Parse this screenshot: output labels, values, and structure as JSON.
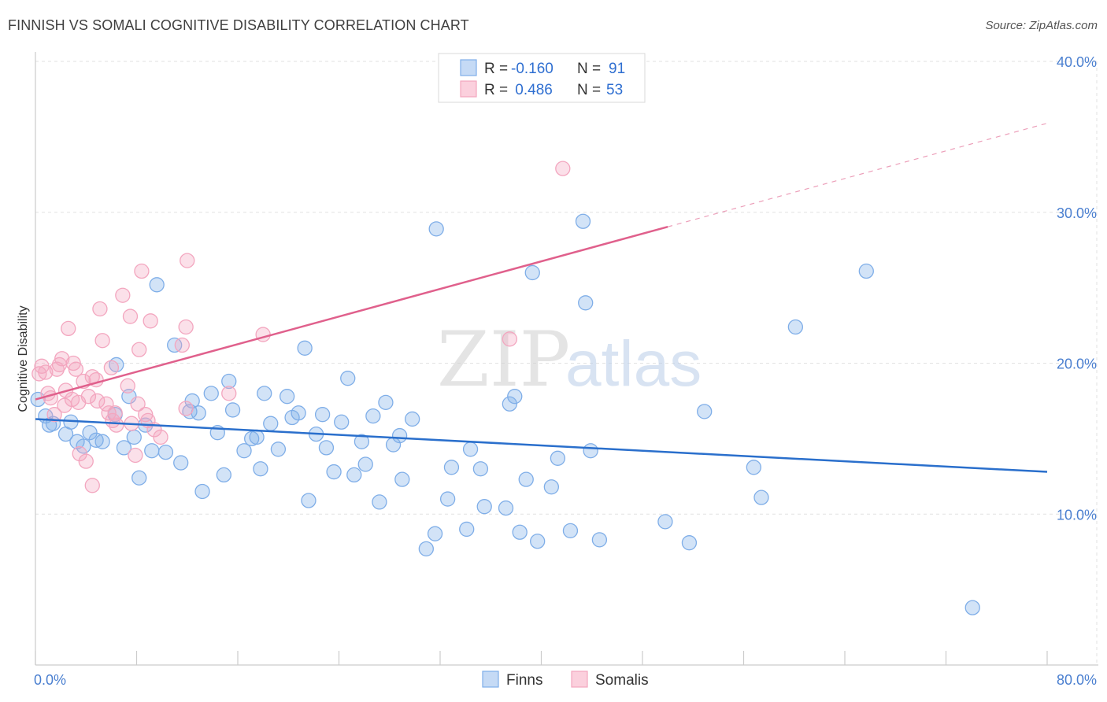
{
  "title": "FINNISH VS SOMALI COGNITIVE DISABILITY CORRELATION CHART",
  "source": "Source: ZipAtlas.com",
  "watermark": {
    "zip": "ZIP",
    "atlas": "atlas"
  },
  "chart_data": {
    "type": "scatter",
    "title": "FINNISH VS SOMALI COGNITIVE DISABILITY CORRELATION CHART",
    "ylabel": "Cognitive Disability",
    "xlabel": "",
    "xlim": [
      0,
      80
    ],
    "ylim": [
      0,
      40
    ],
    "x_tick_labels": [
      {
        "v": 0,
        "label": "0.0%"
      },
      {
        "v": 80,
        "label": "80.0%"
      }
    ],
    "y_ticks": [
      {
        "v": 10,
        "label": "10.0%"
      },
      {
        "v": 20,
        "label": "20.0%"
      },
      {
        "v": 30,
        "label": "30.0%"
      },
      {
        "v": 40,
        "label": "40.0%"
      }
    ],
    "grid": true,
    "legend_position": "top-center",
    "legend": [
      {
        "r_label": "R =",
        "r_value": "-0.160",
        "n_label": "N =",
        "n_value": "91"
      },
      {
        "r_label": "R =",
        "r_value": " 0.486",
        "n_label": "N =",
        "n_value": "53"
      }
    ],
    "series": [
      {
        "name": "Finns",
        "color": "#7faee8",
        "line_color": "#2a6fcc",
        "trend": {
          "x1": 0,
          "y1": 16.3,
          "x2": 80,
          "y2": 12.8,
          "dashed_from": null
        },
        "points": [
          [
            0.2,
            17.6
          ],
          [
            0.8,
            16.5
          ],
          [
            1.1,
            15.9
          ],
          [
            1.4,
            16.0
          ],
          [
            2.4,
            15.3
          ],
          [
            2.8,
            16.1
          ],
          [
            3.3,
            14.8
          ],
          [
            3.8,
            14.5
          ],
          [
            4.3,
            15.4
          ],
          [
            4.8,
            14.9
          ],
          [
            5.3,
            14.8
          ],
          [
            6.3,
            16.6
          ],
          [
            6.4,
            19.9
          ],
          [
            7.0,
            14.4
          ],
          [
            7.4,
            17.8
          ],
          [
            7.8,
            15.1
          ],
          [
            8.2,
            12.4
          ],
          [
            8.7,
            15.9
          ],
          [
            9.2,
            14.2
          ],
          [
            9.6,
            25.2
          ],
          [
            10.3,
            14.1
          ],
          [
            11.0,
            21.2
          ],
          [
            11.5,
            13.4
          ],
          [
            12.2,
            16.8
          ],
          [
            12.4,
            17.5
          ],
          [
            12.9,
            16.7
          ],
          [
            13.2,
            11.5
          ],
          [
            13.9,
            18.0
          ],
          [
            14.4,
            15.4
          ],
          [
            14.9,
            12.6
          ],
          [
            15.3,
            18.8
          ],
          [
            15.6,
            16.9
          ],
          [
            16.5,
            14.2
          ],
          [
            17.1,
            15.0
          ],
          [
            17.5,
            15.1
          ],
          [
            17.8,
            13.0
          ],
          [
            18.1,
            18.0
          ],
          [
            18.6,
            16.0
          ],
          [
            19.2,
            14.3
          ],
          [
            19.9,
            17.8
          ],
          [
            20.3,
            16.4
          ],
          [
            20.8,
            16.7
          ],
          [
            21.3,
            21.0
          ],
          [
            21.6,
            10.9
          ],
          [
            22.2,
            15.3
          ],
          [
            22.7,
            16.6
          ],
          [
            23.0,
            14.4
          ],
          [
            23.6,
            12.8
          ],
          [
            24.2,
            16.1
          ],
          [
            24.7,
            19.0
          ],
          [
            25.2,
            12.6
          ],
          [
            25.8,
            14.8
          ],
          [
            26.1,
            13.3
          ],
          [
            26.7,
            16.5
          ],
          [
            27.2,
            10.8
          ],
          [
            27.7,
            17.4
          ],
          [
            28.3,
            14.6
          ],
          [
            28.8,
            15.2
          ],
          [
            29.0,
            12.3
          ],
          [
            29.8,
            16.3
          ],
          [
            30.9,
            7.7
          ],
          [
            31.6,
            8.7
          ],
          [
            31.7,
            28.9
          ],
          [
            32.6,
            11.0
          ],
          [
            32.9,
            13.1
          ],
          [
            34.1,
            9.0
          ],
          [
            34.4,
            14.3
          ],
          [
            35.2,
            13.0
          ],
          [
            35.5,
            10.5
          ],
          [
            37.2,
            10.4
          ],
          [
            37.5,
            17.3
          ],
          [
            37.9,
            17.8
          ],
          [
            38.3,
            8.8
          ],
          [
            38.8,
            12.3
          ],
          [
            39.3,
            26.0
          ],
          [
            39.7,
            8.2
          ],
          [
            40.8,
            11.8
          ],
          [
            41.3,
            13.7
          ],
          [
            42.3,
            8.9
          ],
          [
            43.5,
            24.0
          ],
          [
            43.3,
            29.4
          ],
          [
            43.9,
            14.2
          ],
          [
            44.6,
            8.3
          ],
          [
            49.8,
            9.5
          ],
          [
            51.7,
            8.1
          ],
          [
            52.9,
            16.8
          ],
          [
            56.8,
            13.1
          ],
          [
            57.4,
            11.1
          ],
          [
            60.1,
            22.4
          ],
          [
            65.7,
            26.1
          ],
          [
            74.1,
            3.8
          ]
        ]
      },
      {
        "name": "Somalis",
        "color": "#f3a6bf",
        "line_color": "#e0608c",
        "trend": {
          "x1": 0,
          "y1": 17.6,
          "x2": 80,
          "y2": 35.9,
          "dashed_from": 50
        },
        "points": [
          [
            0.3,
            19.3
          ],
          [
            0.5,
            19.8
          ],
          [
            0.8,
            19.4
          ],
          [
            1.0,
            18.0
          ],
          [
            1.2,
            17.7
          ],
          [
            1.5,
            16.6
          ],
          [
            1.7,
            19.6
          ],
          [
            1.9,
            19.9
          ],
          [
            2.1,
            20.3
          ],
          [
            2.3,
            17.2
          ],
          [
            2.4,
            18.2
          ],
          [
            2.6,
            22.3
          ],
          [
            2.9,
            17.6
          ],
          [
            3.0,
            20.0
          ],
          [
            3.2,
            19.6
          ],
          [
            3.4,
            17.4
          ],
          [
            3.5,
            14.0
          ],
          [
            3.8,
            18.8
          ],
          [
            4.0,
            13.5
          ],
          [
            4.2,
            17.8
          ],
          [
            4.5,
            19.1
          ],
          [
            4.5,
            11.9
          ],
          [
            4.8,
            18.9
          ],
          [
            4.9,
            17.5
          ],
          [
            5.1,
            23.6
          ],
          [
            5.3,
            21.5
          ],
          [
            5.6,
            17.3
          ],
          [
            5.8,
            16.7
          ],
          [
            6.0,
            19.7
          ],
          [
            6.1,
            16.2
          ],
          [
            6.3,
            16.7
          ],
          [
            6.4,
            15.9
          ],
          [
            6.9,
            24.5
          ],
          [
            7.3,
            18.5
          ],
          [
            7.5,
            23.1
          ],
          [
            7.6,
            16.0
          ],
          [
            7.9,
            13.9
          ],
          [
            8.1,
            17.3
          ],
          [
            8.2,
            20.9
          ],
          [
            8.4,
            26.1
          ],
          [
            8.7,
            16.6
          ],
          [
            8.9,
            16.2
          ],
          [
            9.1,
            22.8
          ],
          [
            9.4,
            15.6
          ],
          [
            9.9,
            15.1
          ],
          [
            11.6,
            21.2
          ],
          [
            11.9,
            22.4
          ],
          [
            12.0,
            26.8
          ],
          [
            15.3,
            18.0
          ],
          [
            18.0,
            21.9
          ],
          [
            37.5,
            21.6
          ],
          [
            41.7,
            32.9
          ],
          [
            11.9,
            17.0
          ]
        ]
      }
    ]
  }
}
